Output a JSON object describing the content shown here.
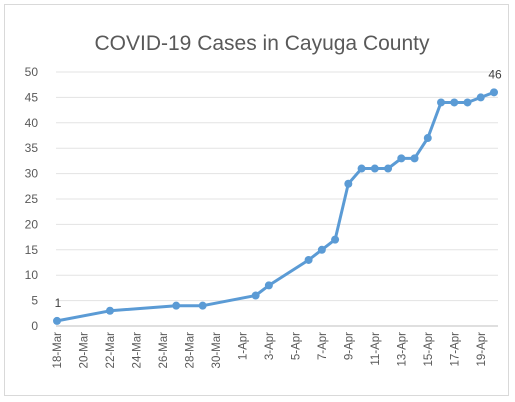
{
  "chart_data": {
    "type": "line",
    "title": "COVID-19 Cases in Cayuga County",
    "xlabel": "",
    "ylabel": "",
    "ylim": [
      0,
      50
    ],
    "yticks": [
      0,
      5,
      10,
      15,
      20,
      25,
      30,
      35,
      40,
      45,
      50
    ],
    "x_tick_labels": [
      "18-Mar",
      "20-Mar",
      "22-Mar",
      "24-Mar",
      "26-Mar",
      "28-Mar",
      "30-Mar",
      "1-Apr",
      "3-Apr",
      "5-Apr",
      "7-Apr",
      "9-Apr",
      "11-Apr",
      "13-Apr",
      "15-Apr",
      "17-Apr",
      "19-Apr"
    ],
    "grid": "horizontal",
    "legend": "none",
    "line_color": "#5b9bd5",
    "series": [
      {
        "points": [
          {
            "x": "18-Mar",
            "y": 1
          },
          {
            "x": "22-Mar",
            "y": 3
          },
          {
            "x": "27-Mar",
            "y": 4
          },
          {
            "x": "29-Mar",
            "y": 4
          },
          {
            "x": "2-Apr",
            "y": 6
          },
          {
            "x": "3-Apr",
            "y": 8
          },
          {
            "x": "6-Apr",
            "y": 13
          },
          {
            "x": "7-Apr",
            "y": 15
          },
          {
            "x": "8-Apr",
            "y": 17
          },
          {
            "x": "9-Apr",
            "y": 28
          },
          {
            "x": "10-Apr",
            "y": 31
          },
          {
            "x": "11-Apr",
            "y": 31
          },
          {
            "x": "12-Apr",
            "y": 31
          },
          {
            "x": "13-Apr",
            "y": 33
          },
          {
            "x": "14-Apr",
            "y": 33
          },
          {
            "x": "15-Apr",
            "y": 37
          },
          {
            "x": "16-Apr",
            "y": 44
          },
          {
            "x": "17-Apr",
            "y": 44
          },
          {
            "x": "18-Apr",
            "y": 44
          },
          {
            "x": "19-Apr",
            "y": 45
          },
          {
            "x": "20-Apr",
            "y": 46
          }
        ]
      }
    ],
    "data_labels": [
      {
        "x": "18-Mar",
        "y": 1,
        "text": "1"
      },
      {
        "x": "20-Apr",
        "y": 46,
        "text": "46"
      }
    ]
  }
}
